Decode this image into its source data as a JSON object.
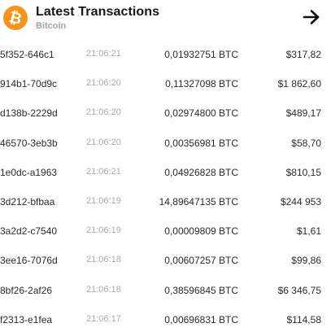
{
  "header": {
    "title": "Latest Transactions",
    "subtitle": "Bitcoin",
    "coin_icon": "bitcoin-icon",
    "action_icon": "arrow-right-icon"
  },
  "colors": {
    "bitcoin": "#f7931a",
    "muted": "#a3a3ab"
  },
  "transactions": [
    {
      "id": "5f352-646c1",
      "time": "21:06:21",
      "amount": "0,01932751 BTC",
      "usd": "$317,82"
    },
    {
      "id": "914b1-70d9c",
      "time": "21:06:20",
      "amount": "0,11327098 BTC",
      "usd": "$1 862,60"
    },
    {
      "id": "d138b-2229d",
      "time": "21:06:20",
      "amount": "0,02974800 BTC",
      "usd": "$489,17"
    },
    {
      "id": "46570-3eb3b",
      "time": "21:06:20",
      "amount": "0,00356981 BTC",
      "usd": "$58,70"
    },
    {
      "id": "1e0dc-a1963",
      "time": "21:06:21",
      "amount": "0,04926828 BTC",
      "usd": "$810,15"
    },
    {
      "id": "3d212-bfbaa",
      "time": "21:06:19",
      "amount": "14,89647135 BTC",
      "usd": "$244 953"
    },
    {
      "id": "3a2d2-c7540",
      "time": "21:06:19",
      "amount": "0,00009809 BTC",
      "usd": "$1,61"
    },
    {
      "id": "3ee16-7076d",
      "time": "21:06:18",
      "amount": "0,00607257 BTC",
      "usd": "$99,86"
    },
    {
      "id": "8bf26-2af26",
      "time": "21:06:18",
      "amount": "0,38596845 BTC",
      "usd": "$6 346,75"
    },
    {
      "id": "f2313-e1fea",
      "time": "21:06:17",
      "amount": "0,00696831 BTC",
      "usd": "$114,58"
    }
  ]
}
